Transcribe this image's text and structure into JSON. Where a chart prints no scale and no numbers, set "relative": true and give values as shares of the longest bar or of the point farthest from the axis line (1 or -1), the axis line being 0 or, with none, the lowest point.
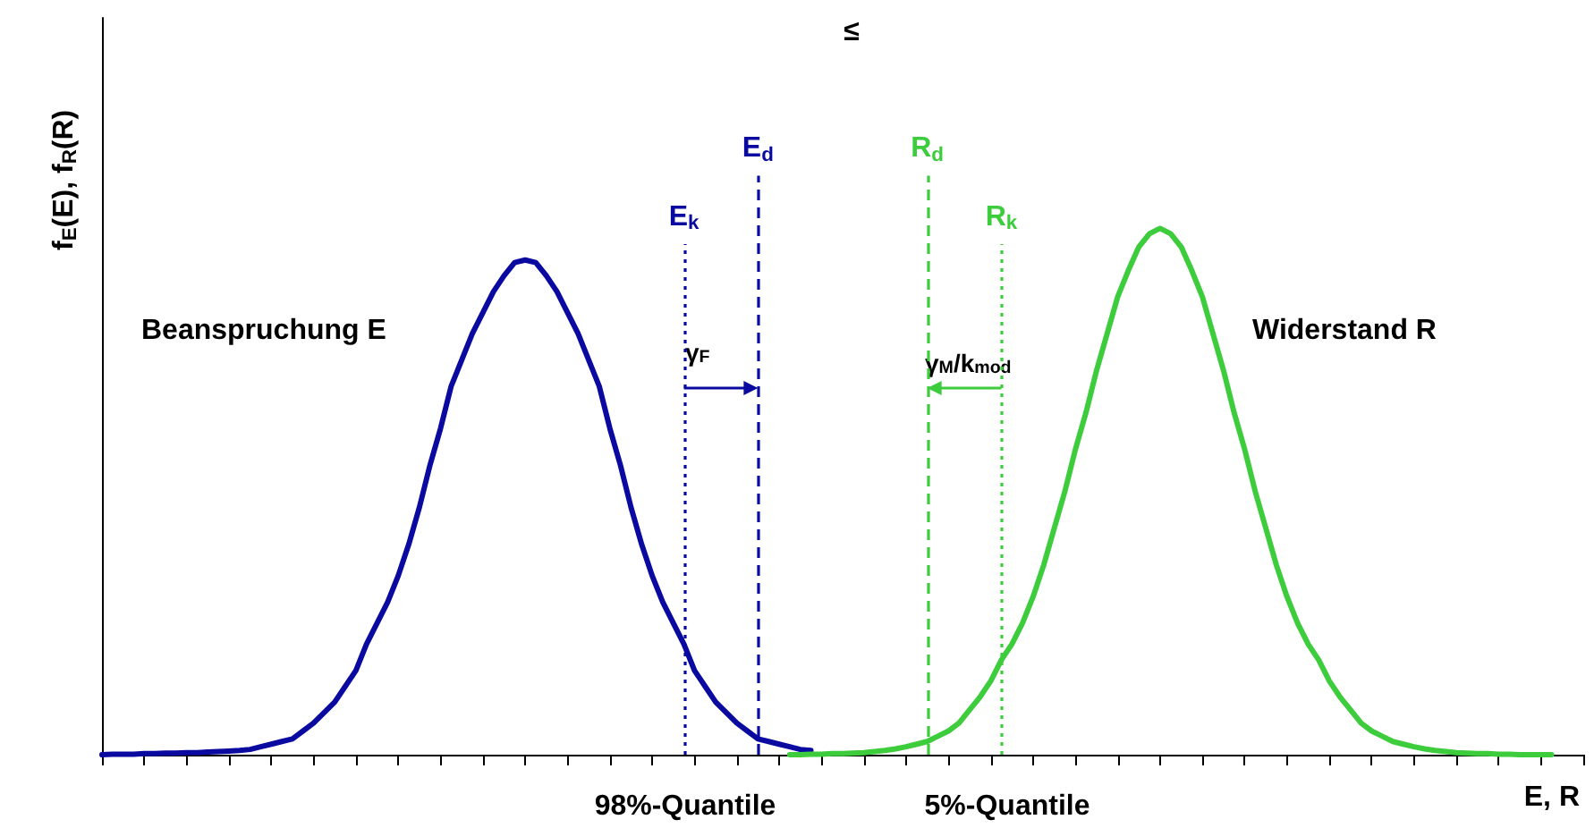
{
  "chart_data": {
    "type": "line",
    "relative": true,
    "xlabel": "E, R",
    "ylabel": "f$_{E}$(E), f$_{R}$(R)",
    "categories": [
      null,
      null,
      null,
      null,
      null,
      null,
      null,
      null,
      null,
      null,
      null,
      null,
      null,
      null,
      null,
      null,
      null,
      null,
      null,
      null,
      null,
      null,
      null,
      null,
      null,
      null,
      null,
      null,
      null,
      null,
      null,
      null,
      null,
      null,
      null,
      null,
      null,
      null,
      null,
      null,
      null,
      null,
      null,
      null,
      null,
      null,
      null,
      null,
      null,
      null,
      null,
      null,
      null,
      null,
      null,
      null,
      null,
      null,
      null,
      null,
      null,
      null,
      null,
      null,
      null,
      null,
      null,
      null,
      null,
      null,
      null,
      null,
      null,
      null,
      null,
      null,
      null,
      null,
      null,
      null,
      null,
      null,
      null,
      null,
      null,
      null,
      null,
      null,
      null,
      null,
      null,
      null,
      null,
      null,
      null,
      null,
      null,
      null,
      null,
      null,
      null,
      null,
      null,
      null,
      null,
      null,
      null,
      null,
      null,
      null,
      null,
      null,
      null,
      null,
      null,
      null,
      null,
      null,
      null,
      null,
      null,
      null,
      null,
      null,
      null,
      null,
      null,
      null,
      null,
      null,
      null,
      null,
      null,
      null,
      null,
      null,
      null,
      null,
      null,
      null,
      null
    ],
    "series": [
      {
        "color": "#0a0aa0",
        "values": [
          0,
          0.001,
          0.001,
          0.001,
          0.002,
          0.002,
          0.003,
          0.003,
          0.004,
          0.004,
          0.005,
          0.006,
          0.007,
          0.008,
          0.01,
          0.015,
          0.02,
          0.025,
          0.03,
          0.045,
          0.06,
          0.08,
          0.1,
          0.13,
          0.16,
          0.21,
          0.25,
          0.29,
          0.34,
          0.4,
          0.47,
          0.55,
          0.62,
          0.7,
          0.75,
          0.8,
          0.84,
          0.88,
          0.91,
          0.935,
          0.94,
          0.935,
          0.91,
          0.88,
          0.84,
          0.8,
          0.75,
          0.7,
          0.62,
          0.55,
          0.47,
          0.4,
          0.34,
          0.29,
          0.25,
          0.21,
          0.16,
          0.13,
          0.1,
          0.08,
          0.06,
          0.045,
          0.03,
          0.025,
          0.02,
          0.015,
          0.01,
          0.008,
          null,
          null,
          null,
          null,
          null,
          null,
          null,
          null,
          null,
          null,
          null,
          null,
          null,
          null,
          null,
          null,
          null,
          null,
          null,
          null,
          null,
          null,
          null,
          null,
          null,
          null,
          null,
          null,
          null,
          null,
          null,
          null,
          null,
          null,
          null,
          null,
          null,
          null,
          null,
          null,
          null,
          null,
          null,
          null,
          null,
          null,
          null,
          null,
          null,
          null,
          null,
          null,
          null,
          null,
          null,
          null,
          null,
          null,
          null,
          null,
          null,
          null,
          null,
          null,
          null,
          null,
          null,
          null,
          null,
          null,
          null,
          null,
          null
        ]
      },
      {
        "color": "#3ccc3c",
        "values": [
          null,
          null,
          null,
          null,
          null,
          null,
          null,
          null,
          null,
          null,
          null,
          null,
          null,
          null,
          null,
          null,
          null,
          null,
          null,
          null,
          null,
          null,
          null,
          null,
          null,
          null,
          null,
          null,
          null,
          null,
          null,
          null,
          null,
          null,
          null,
          null,
          null,
          null,
          null,
          null,
          null,
          null,
          null,
          null,
          null,
          null,
          null,
          null,
          null,
          null,
          null,
          null,
          null,
          null,
          null,
          null,
          null,
          null,
          null,
          null,
          null,
          null,
          null,
          null,
          null,
          0,
          0,
          0.001,
          0.001,
          0.002,
          0.002,
          0.003,
          0.004,
          0.006,
          0.008,
          0.011,
          0.015,
          0.02,
          0.025,
          0.035,
          0.045,
          0.06,
          0.085,
          0.11,
          0.14,
          0.18,
          0.21,
          0.25,
          0.3,
          0.36,
          0.43,
          0.5,
          0.58,
          0.65,
          0.73,
          0.8,
          0.87,
          0.92,
          0.965,
          0.99,
          1.0,
          0.99,
          0.965,
          0.92,
          0.87,
          0.8,
          0.73,
          0.65,
          0.58,
          0.5,
          0.43,
          0.36,
          0.3,
          0.25,
          0.21,
          0.18,
          0.14,
          0.11,
          0.085,
          0.06,
          0.045,
          0.035,
          0.025,
          0.02,
          0.015,
          0.011,
          0.008,
          0.006,
          0.004,
          0.003,
          0.002,
          0.002,
          0.001,
          0.001,
          0,
          0,
          0,
          0,
          null,
          null,
          null
        ]
      }
    ],
    "annotations": [
      "Beanspruchung E",
      "Widerstand R",
      "≤",
      "98%-Quantile",
      "5%-Quantile",
      "γ$_{F}$",
      "γ$_{M}$/k$_{mod}$",
      "E$_{k}$",
      "E$_{d}$",
      "R$_{d}$",
      "R$_{k}$"
    ],
    "grid": false,
    "marker": "none",
    "line_style": "solid"
  }
}
